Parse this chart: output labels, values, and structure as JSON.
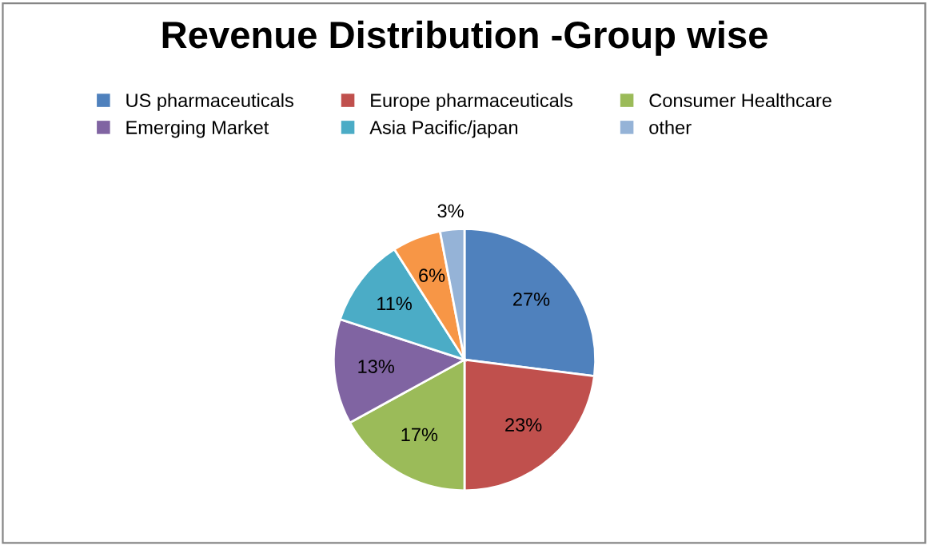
{
  "chart_data": {
    "type": "pie",
    "title": "Revenue Distribution -Group wise",
    "categories": [
      "US pharmaceuticals",
      "Europe pharmaceuticals",
      "Consumer Healthcare",
      "Emerging Market",
      "Asia Pacific/japan",
      null,
      "other"
    ],
    "values": [
      27,
      23,
      17,
      13,
      11,
      6,
      3
    ],
    "colors": [
      "#4f81bd",
      "#c0504d",
      "#9bbb59",
      "#8064a2",
      "#4bacc6",
      "#f79646",
      "#95b3d7"
    ],
    "value_labels": [
      "27%",
      "23%",
      "17%",
      "13%",
      "11%",
      "6%",
      "3%"
    ],
    "legend": "top"
  }
}
